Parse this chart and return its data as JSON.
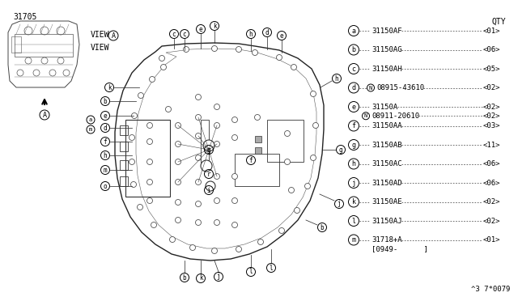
{
  "bg_color": "#ffffff",
  "part_number": "31705",
  "diagram_code": "^3 7*0079",
  "qty_header": "QTY",
  "legend_rows": [
    {
      "lbl": "a",
      "part": "31150AF",
      "qty": "01",
      "has_N": false,
      "sub": null
    },
    {
      "lbl": "b",
      "part": "31150AG",
      "qty": "06",
      "has_N": false,
      "sub": null
    },
    {
      "lbl": "c",
      "part": "31150AH",
      "qty": "05",
      "has_N": false,
      "sub": null
    },
    {
      "lbl": "d",
      "part": "08915-43610",
      "qty": "02",
      "has_N": true,
      "sub": null
    },
    {
      "lbl": "e",
      "part": "31150A",
      "qty": "02",
      "has_N": false,
      "sub": {
        "part": "08911-20610",
        "qty": "02"
      }
    },
    {
      "lbl": "f",
      "part": "31150AA",
      "qty": "03",
      "has_N": false,
      "sub": null
    },
    {
      "lbl": "g",
      "part": "31150AB",
      "qty": "11",
      "has_N": false,
      "sub": null
    },
    {
      "lbl": "h",
      "part": "31150AC",
      "qty": "06",
      "has_N": false,
      "sub": null
    },
    {
      "lbl": "j",
      "part": "31150AD",
      "qty": "06",
      "has_N": false,
      "sub": null
    },
    {
      "lbl": "k",
      "part": "31150AE",
      "qty": "02",
      "has_N": false,
      "sub": null
    },
    {
      "lbl": "l",
      "part": "31150AJ",
      "qty": "02",
      "has_N": false,
      "sub": null
    },
    {
      "lbl": "m",
      "part": "31718+A",
      "qty": "01",
      "has_N": false,
      "sub": null,
      "sub_text": "[0949-      ]"
    }
  ]
}
